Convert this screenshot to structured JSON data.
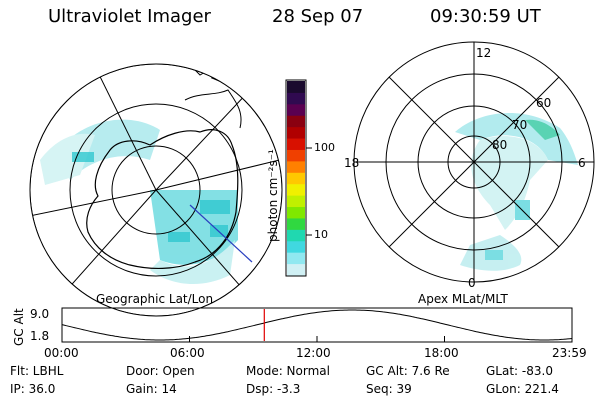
{
  "header": {
    "instrument": "Ultraviolet Imager",
    "date": "28 Sep 07",
    "time": "09:30:59 UT"
  },
  "geo_panel": {
    "label": "Geographic Lat/Lon"
  },
  "mag_panel": {
    "label": "Apex MLat/MLT",
    "lat_labels": [
      "80",
      "70",
      "60"
    ],
    "mlt_labels": {
      "top": "12",
      "left": "18",
      "right": "6",
      "bottom": "0"
    }
  },
  "colorbar": {
    "unit_label": "photon cm⁻²s⁻¹",
    "ticks": [
      "100",
      "10"
    ],
    "colors": [
      "#1a0a2e",
      "#300a50",
      "#5a0050",
      "#8a0010",
      "#b00000",
      "#d81000",
      "#f04000",
      "#ff8000",
      "#ffc800",
      "#f0f000",
      "#c0f000",
      "#80e800",
      "#30d840",
      "#20d8b0",
      "#40d8e0",
      "#90e8f0",
      "#d0f0f4"
    ]
  },
  "altitude_plot": {
    "ylabel": "GC Alt",
    "y_ticks": [
      "9.0",
      "1.8"
    ],
    "x_ticks": [
      "00:00",
      "06:00",
      "12:00",
      "18:00",
      "23:59"
    ],
    "current_time_hours": 9.52
  },
  "info": {
    "flt": "Flt: LBHL",
    "ip": "IP: 36.0",
    "door": "Door: Open",
    "gain": "Gain: 14",
    "mode": "Mode: Normal",
    "dsp": "Dsp:    -3.3",
    "gc_alt": "GC Alt: 7.6 Re",
    "seq": "Seq: 39",
    "glat": "GLat:  -83.0",
    "glon": "GLon: 221.4"
  },
  "colors": {
    "auroral_fill": "#7fe0e6",
    "current_time_marker": "#e00000",
    "track_line": "#2a40c0"
  }
}
